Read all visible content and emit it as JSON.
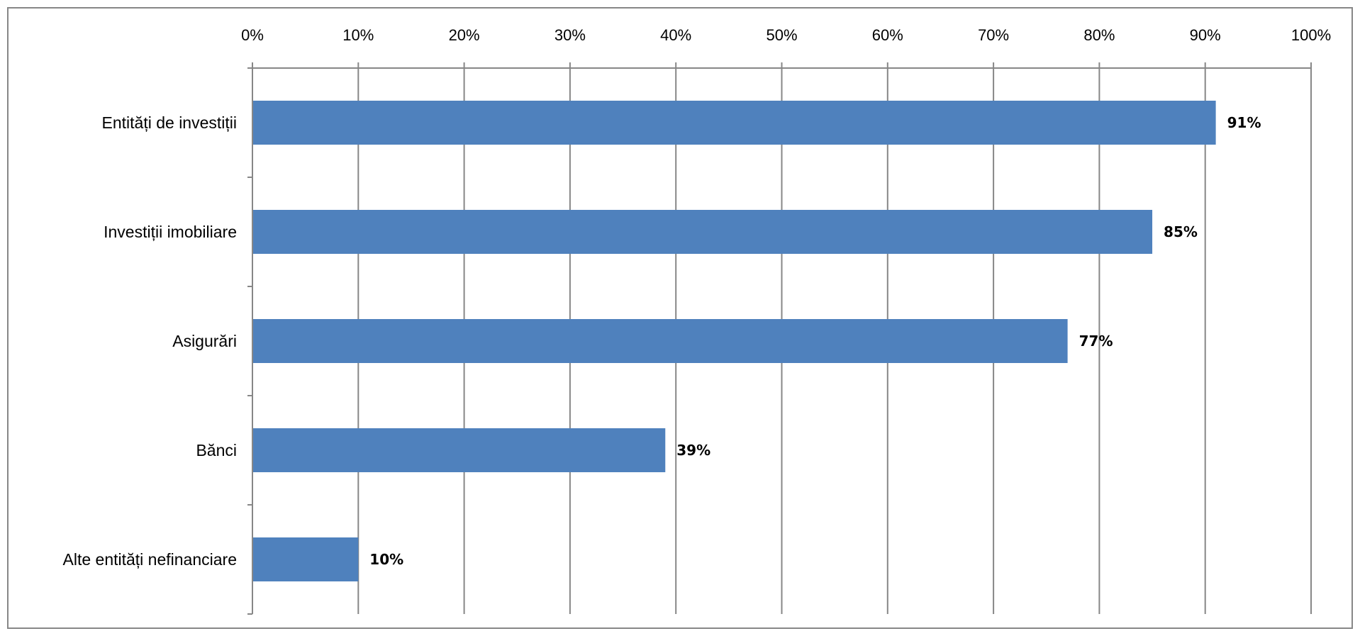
{
  "chart_data": {
    "type": "bar",
    "orientation": "horizontal",
    "categories": [
      "Entități de investiții",
      "Investiții imobiliare",
      "Asigurări",
      "Bănci",
      "Alte entități nefinanciare"
    ],
    "values": [
      91,
      85,
      77,
      39,
      10
    ],
    "data_labels": [
      "91%",
      "85%",
      "77%",
      "39%",
      "10%"
    ],
    "xlim": [
      0,
      100
    ],
    "x_ticks": [
      0,
      10,
      20,
      30,
      40,
      50,
      60,
      70,
      80,
      90,
      100
    ],
    "x_tick_labels": [
      "0%",
      "10%",
      "20%",
      "30%",
      "40%",
      "50%",
      "60%",
      "70%",
      "80%",
      "90%",
      "100%"
    ],
    "x_axis_position": "top",
    "grid": true,
    "legend": "none",
    "title": "",
    "xlabel": "",
    "ylabel": "",
    "colors": {
      "bar": "#4F81BD",
      "grid": "#878787",
      "axis": "#878787",
      "frame": "#878787"
    }
  }
}
